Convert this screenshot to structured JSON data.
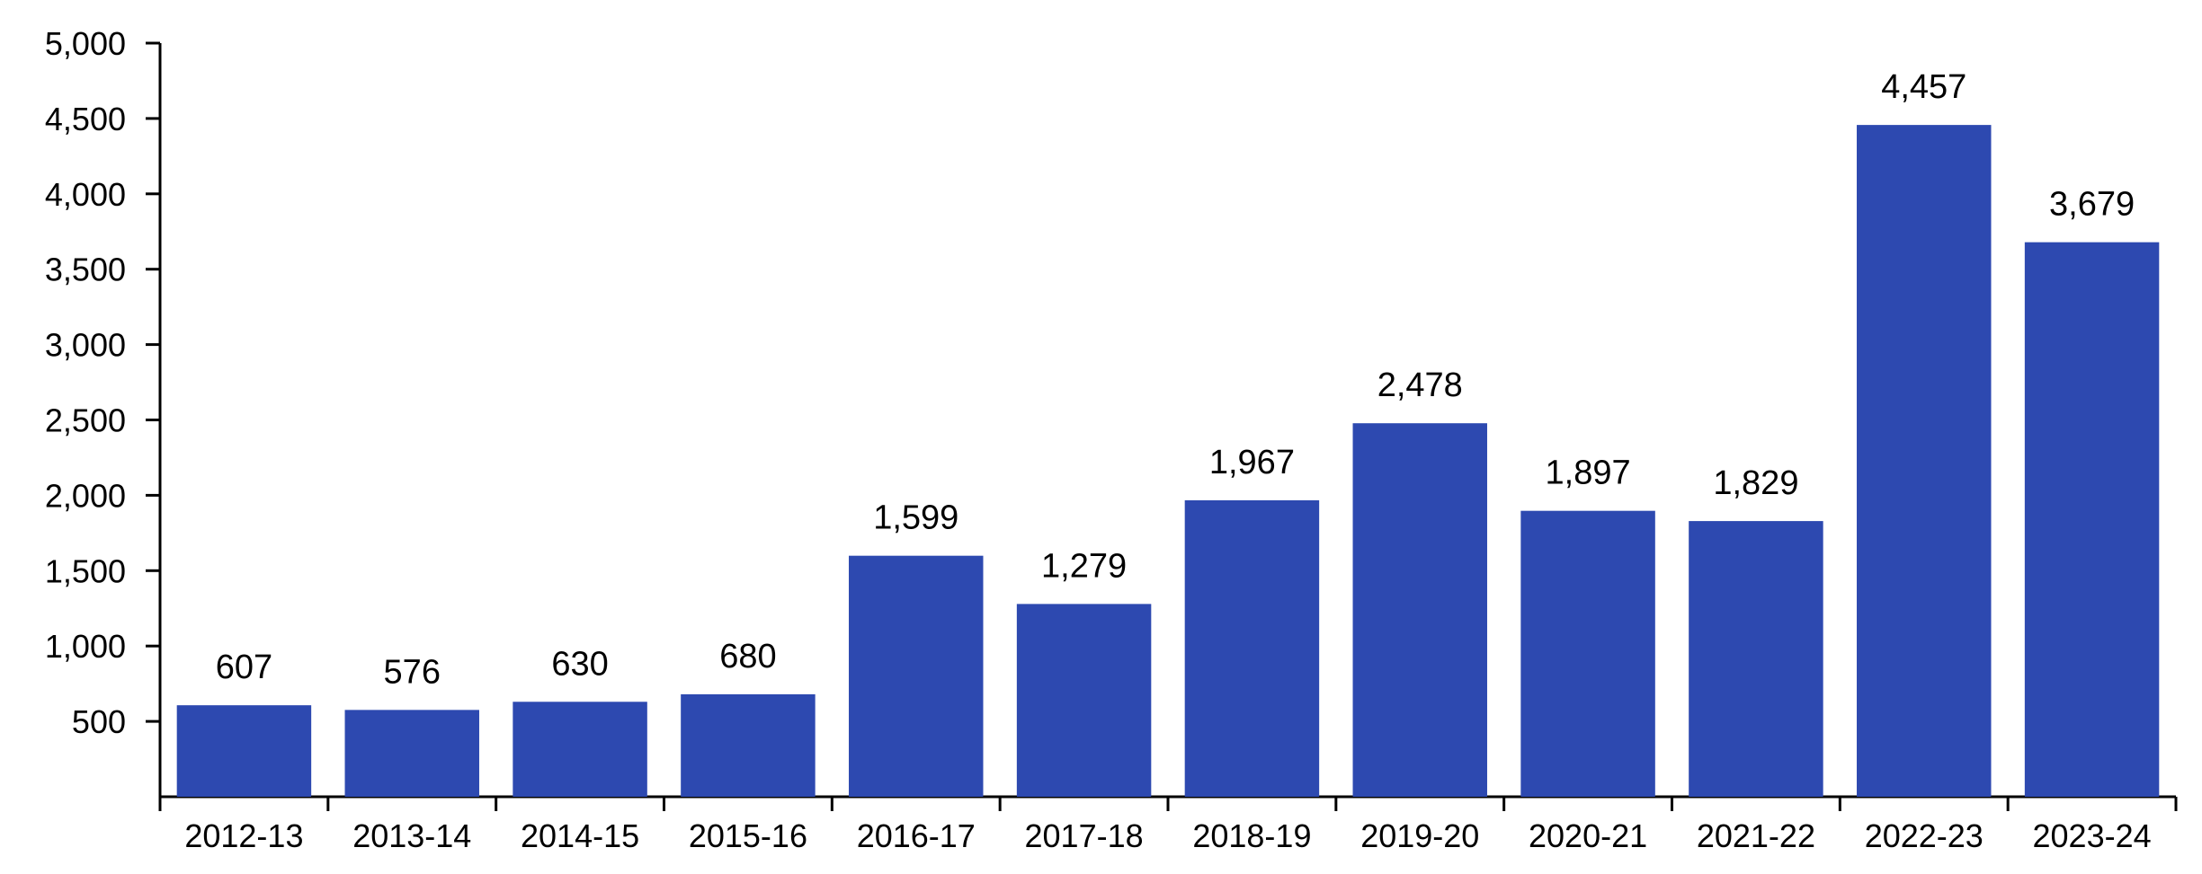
{
  "chart_data": {
    "type": "bar",
    "title": "",
    "xlabel": "",
    "ylabel": "",
    "categories": [
      "2012-13",
      "2013-14",
      "2014-15",
      "2015-16",
      "2016-17",
      "2017-18",
      "2018-19",
      "2019-20",
      "2020-21",
      "2021-22",
      "2022-23",
      "2023-24"
    ],
    "values": [
      607,
      576,
      630,
      680,
      1599,
      1279,
      1967,
      2478,
      1897,
      1829,
      4457,
      3679
    ],
    "value_labels": [
      "607",
      "576",
      "630",
      "680",
      "1,599",
      "1,279",
      "1,967",
      "2,478",
      "1,897",
      "1,829",
      "4,457",
      "3,679"
    ],
    "ylim": [
      0,
      5000
    ],
    "yticks": [
      500,
      1000,
      1500,
      2000,
      2500,
      3000,
      3500,
      4000,
      4500,
      5000
    ],
    "ytick_labels": [
      "500",
      "1,000",
      "1,500",
      "2,000",
      "2,500",
      "3,000",
      "3,500",
      "4,000",
      "4,500",
      "5,000"
    ],
    "grid": false,
    "legend": "none",
    "bar_color": "#2d49b0"
  }
}
